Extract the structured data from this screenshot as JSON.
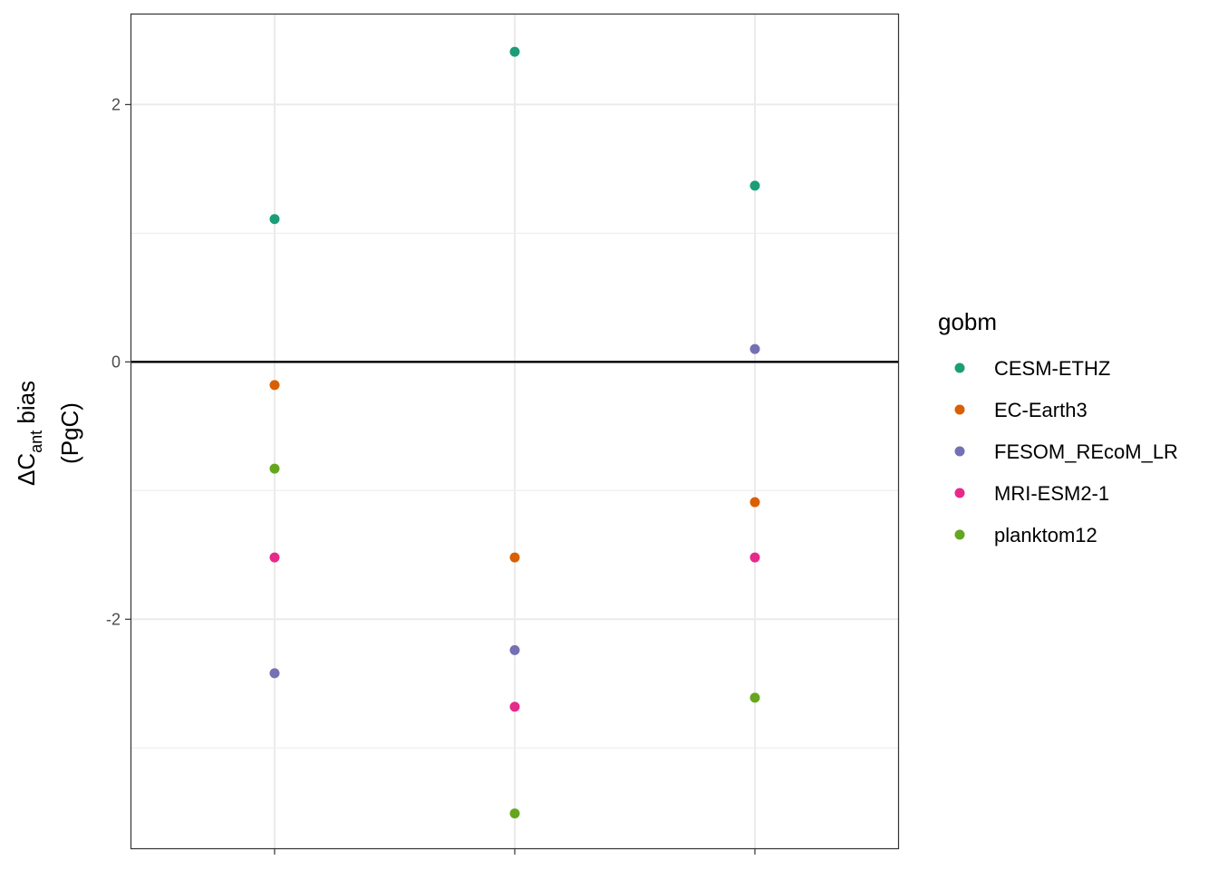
{
  "chart_data": {
    "type": "scatter",
    "x_categories": [
      "",
      "",
      ""
    ],
    "ylabel": {
      "symbol": "ΔC",
      "subscript": "ant",
      "text": " bias",
      "unit": "(PgC)"
    },
    "ylim": [
      -3.78,
      2.7
    ],
    "yticks": [
      2,
      0,
      -2
    ],
    "ytick_labels": [
      "2",
      "0",
      "-2"
    ],
    "hline": 0,
    "grid": true,
    "legend": {
      "title": "gobm",
      "position": "right",
      "entries": [
        {
          "name": "CESM-ETHZ",
          "color": "#1b9e77"
        },
        {
          "name": "EC-Earth3",
          "color": "#d95f02"
        },
        {
          "name": "FESOM_REcoM_LR",
          "color": "#7570b3"
        },
        {
          "name": "MRI-ESM2-1",
          "color": "#e7298a"
        },
        {
          "name": "planktom12",
          "color": "#66a61e"
        }
      ]
    },
    "series": [
      {
        "name": "CESM-ETHZ",
        "color": "#1b9e77",
        "values": [
          1.11,
          2.41,
          1.37
        ]
      },
      {
        "name": "EC-Earth3",
        "color": "#d95f02",
        "values": [
          -0.18,
          -1.52,
          -1.09
        ]
      },
      {
        "name": "FESOM_REcoM_LR",
        "color": "#7570b3",
        "values": [
          -2.42,
          -2.24,
          0.1
        ]
      },
      {
        "name": "MRI-ESM2-1",
        "color": "#e7298a",
        "values": [
          -1.52,
          -2.68,
          -1.52
        ]
      },
      {
        "name": "planktom12",
        "color": "#66a61e",
        "values": [
          -0.83,
          -3.51,
          -2.61
        ]
      }
    ]
  }
}
